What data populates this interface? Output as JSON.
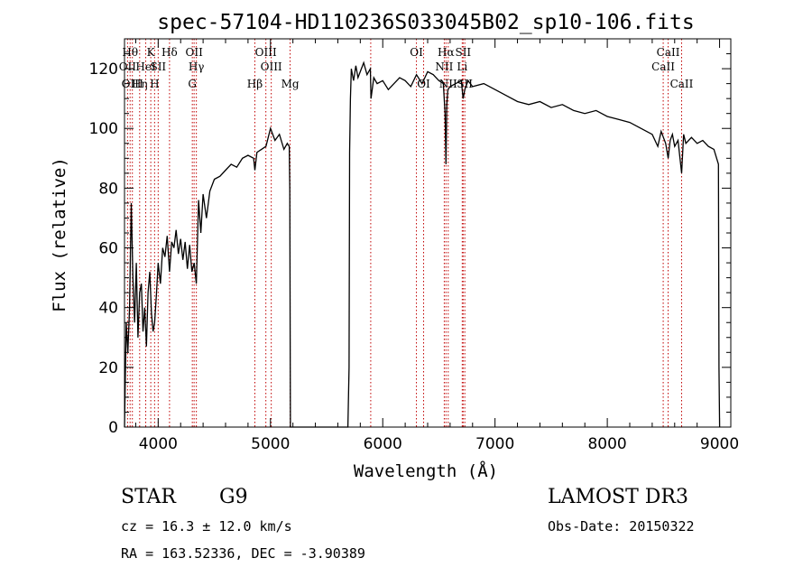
{
  "chart_data": {
    "type": "line",
    "title": "spec-57104-HD110236S033045B02_sp10-106.fits",
    "xlabel": "Wavelength (Å)",
    "ylabel": "Flux (relative)",
    "xlim": [
      3700,
      9100
    ],
    "ylim": [
      0,
      130
    ],
    "xticks": [
      4000,
      5000,
      6000,
      7000,
      8000,
      9000
    ],
    "yticks": [
      0,
      20,
      40,
      60,
      80,
      100,
      120
    ],
    "series": [
      {
        "name": "flux",
        "x": [
          3700,
          3715,
          3730,
          3745,
          3760,
          3775,
          3790,
          3805,
          3820,
          3835,
          3850,
          3865,
          3880,
          3895,
          3910,
          3925,
          3940,
          3955,
          3968,
          3985,
          4000,
          4020,
          4040,
          4060,
          4080,
          4101,
          4120,
          4140,
          4160,
          4180,
          4200,
          4220,
          4240,
          4260,
          4280,
          4300,
          4320,
          4340,
          4360,
          4380,
          4400,
          4430,
          4460,
          4500,
          4550,
          4600,
          4650,
          4700,
          4750,
          4800,
          4850,
          4861,
          4880,
          4920,
          4960,
          5000,
          5040,
          5080,
          5120,
          5150,
          5167,
          5172,
          5176,
          5178,
          5178,
          5690,
          5700,
          5705,
          5712,
          5720,
          5730,
          5740,
          5760,
          5780,
          5800,
          5830,
          5860,
          5890,
          5895,
          5920,
          5950,
          6000,
          6050,
          6100,
          6150,
          6200,
          6250,
          6300,
          6350,
          6400,
          6450,
          6500,
          6540,
          6555,
          6563,
          6570,
          6580,
          6600,
          6650,
          6700,
          6716,
          6731,
          6760,
          6800,
          6900,
          7000,
          7100,
          7200,
          7300,
          7400,
          7500,
          7600,
          7700,
          7800,
          7900,
          8000,
          8100,
          8200,
          8300,
          8400,
          8450,
          8480,
          8500,
          8520,
          8542,
          8560,
          8580,
          8600,
          8630,
          8662,
          8680,
          8700,
          8750,
          8800,
          8850,
          8900,
          8950,
          8990,
          8995,
          9000
        ],
        "values": [
          0,
          35,
          25,
          40,
          75,
          50,
          35,
          55,
          30,
          45,
          48,
          32,
          40,
          27,
          45,
          52,
          38,
          32,
          35,
          45,
          55,
          48,
          60,
          57,
          64,
          52,
          62,
          60,
          66,
          58,
          63,
          56,
          62,
          53,
          61,
          52,
          55,
          48,
          76,
          65,
          78,
          70,
          79,
          83,
          84,
          86,
          88,
          87,
          90,
          91,
          90,
          86,
          92,
          93,
          94,
          100,
          96,
          98,
          93,
          95,
          94,
          80,
          20,
          0,
          0,
          0,
          20,
          92,
          110,
          120,
          118,
          116,
          121,
          117,
          119,
          122,
          118,
          120,
          110,
          117,
          115,
          116,
          113,
          115,
          117,
          116,
          114,
          118,
          115,
          119,
          118,
          116,
          115,
          105,
          88,
          108,
          113,
          114,
          115,
          116,
          110,
          113,
          116,
          114,
          115,
          113,
          111,
          109,
          108,
          109,
          107,
          108,
          106,
          105,
          106,
          104,
          103,
          102,
          100,
          98,
          94,
          99,
          97,
          95,
          90,
          96,
          98,
          94,
          96,
          85,
          98,
          95,
          97,
          95,
          96,
          94,
          93,
          88,
          20,
          0
        ]
      }
    ],
    "line_markers": [
      {
        "wavelength": 3750,
        "label": "Hθ",
        "row": 1
      },
      {
        "wavelength": 3727,
        "label": "OII",
        "row": 2
      },
      {
        "wavelength": 3770,
        "label": "OIII",
        "row": 3
      },
      {
        "wavelength": 3835,
        "label": "Hη",
        "row": 3
      },
      {
        "wavelength": 3889,
        "label": "HeI",
        "row": 2
      },
      {
        "wavelength": 3934,
        "label": "K",
        "row": 1
      },
      {
        "wavelength": 3968,
        "label": "H",
        "row": 3
      },
      {
        "wavelength": 4000,
        "label": "SII",
        "row": 2
      },
      {
        "wavelength": 4101,
        "label": "Hδ",
        "row": 1
      },
      {
        "wavelength": 4304,
        "label": "G",
        "row": 3
      },
      {
        "wavelength": 4320,
        "label": "OII",
        "row": 1
      },
      {
        "wavelength": 4340,
        "label": "Hγ",
        "row": 2
      },
      {
        "wavelength": 4861,
        "label": "Hβ",
        "row": 3
      },
      {
        "wavelength": 4959,
        "label": "OIII",
        "row": 1
      },
      {
        "wavelength": 5007,
        "label": "OIII",
        "row": 2
      },
      {
        "wavelength": 5175,
        "label": "Mg",
        "row": 3
      },
      {
        "wavelength": 5893,
        "label": "",
        "row": 0
      },
      {
        "wavelength": 6300,
        "label": "OI",
        "row": 1
      },
      {
        "wavelength": 6364,
        "label": "OI",
        "row": 3
      },
      {
        "wavelength": 6548,
        "label": "NII",
        "row": 2
      },
      {
        "wavelength": 6563,
        "label": "Hα",
        "row": 1
      },
      {
        "wavelength": 6583,
        "label": "NII",
        "row": 3
      },
      {
        "wavelength": 6708,
        "label": "Li",
        "row": 2
      },
      {
        "wavelength": 6716,
        "label": "SII",
        "row": 1
      },
      {
        "wavelength": 6731,
        "label": "SII",
        "row": 3
      },
      {
        "wavelength": 8498,
        "label": "CaII",
        "row": 2
      },
      {
        "wavelength": 8542,
        "label": "CaII",
        "row": 1
      },
      {
        "wavelength": 8662,
        "label": "CaII",
        "row": 3
      }
    ]
  },
  "info": {
    "class": "STAR",
    "subclass": "G9",
    "survey": "LAMOST DR3",
    "cz": "cz = 16.3 ± 12.0 km/s",
    "obs_date": "Obs-Date: 20150322",
    "coords": "RA = 163.52336, DEC =  -3.90389"
  }
}
